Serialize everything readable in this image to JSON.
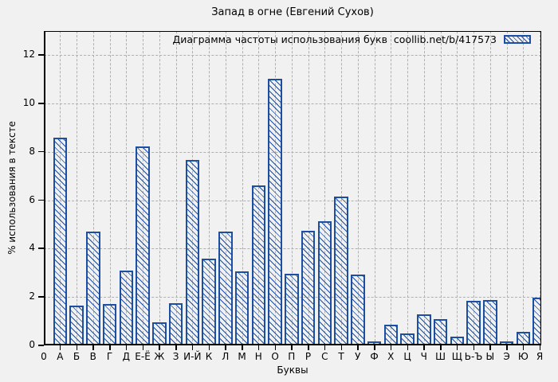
{
  "page": {
    "background": "#f1f1f1"
  },
  "chart_data": {
    "type": "bar",
    "title": "Запад в огне (Евгений Сухов)",
    "legend": "Диаграмма частоты использования букв  coollib.net/b/417573",
    "legend_position": "top-right-inside",
    "xlabel": "Буквы",
    "ylabel": "% использования в тексте",
    "x_origin_label": "0",
    "categories": [
      "А",
      "Б",
      "В",
      "Г",
      "Д",
      "Е-Ё",
      "Ж",
      "З",
      "И-Й",
      "К",
      "Л",
      "М",
      "Н",
      "О",
      "П",
      "Р",
      "С",
      "Т",
      "У",
      "Ф",
      "Х",
      "Ц",
      "Ч",
      "Ш",
      "Щ",
      "Ь-Ъ",
      "Ы",
      "Э",
      "Ю",
      "Я"
    ],
    "values": [
      8.6,
      1.65,
      4.7,
      1.7,
      3.08,
      8.23,
      0.97,
      1.75,
      7.68,
      3.58,
      4.72,
      3.05,
      6.6,
      11.03,
      2.96,
      4.75,
      5.13,
      6.14,
      2.93,
      0.18,
      0.86,
      0.48,
      1.3,
      1.08,
      0.35,
      1.84,
      1.87,
      0.16,
      0.56,
      1.99
    ],
    "yticks": [
      0,
      2,
      4,
      6,
      8,
      10,
      12
    ],
    "ylim": [
      0,
      13
    ],
    "grid": "dashed-both-axes",
    "colors": {
      "bar_hatch": "#1c4fa1",
      "axis": "#000000",
      "grid": "#b0b0b0",
      "text": "#000000",
      "background": "#f1f1f1"
    }
  }
}
